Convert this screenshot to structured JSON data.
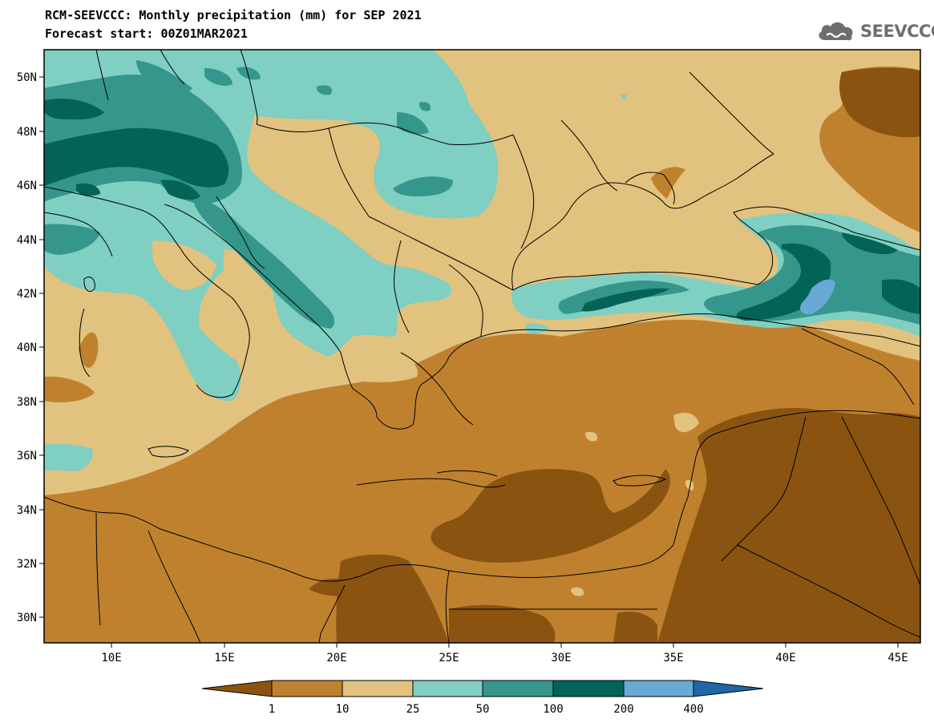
{
  "title": {
    "line1": "RCM-SEEVCCC: Monthly precipitation (mm) for SEP 2021",
    "line2": "Forecast start: 00Z01MAR2021"
  },
  "logo": {
    "text": "SEEVCCC",
    "icon": "cloud-icon"
  },
  "map": {
    "lon_range": [
      7,
      46
    ],
    "lat_range": [
      29,
      51
    ],
    "lat_ticks": [
      "50N",
      "48N",
      "46N",
      "44N",
      "42N",
      "40N",
      "38N",
      "36N",
      "34N",
      "32N",
      "30N"
    ],
    "lon_ticks": [
      "10E",
      "15E",
      "20E",
      "25E",
      "30E",
      "35E",
      "40E",
      "45E"
    ]
  },
  "colorbar": {
    "labels": [
      "1",
      "10",
      "25",
      "50",
      "100",
      "200",
      "400"
    ],
    "colors": [
      "#8a5410",
      "#c0812f",
      "#e2c27f",
      "#7fcfc2",
      "#35968c",
      "#036356",
      "#69a9d6",
      "#2167a8"
    ],
    "unit": "mm"
  }
}
